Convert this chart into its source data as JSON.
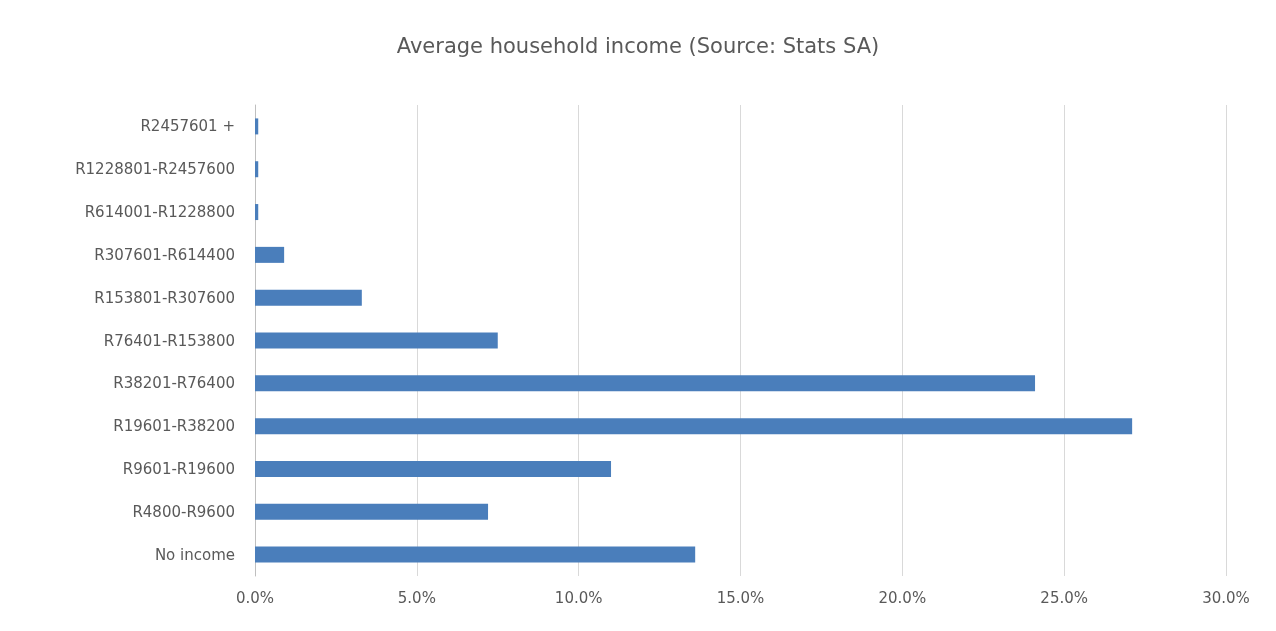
{
  "chart_data": {
    "type": "bar",
    "orientation": "horizontal",
    "title": "Average household income (Source: Stats SA)",
    "categories": [
      "R2457601 +",
      "R1228801-R2457600",
      "R614001-R1228800",
      "R307601-R614400",
      "R153801-R307600",
      "R76401-R153800",
      "R38201-R76400",
      "R19601-R38200",
      "R9601-R19600",
      "R4800-R9600",
      "No income"
    ],
    "values": [
      0.1,
      0.1,
      0.1,
      0.9,
      3.3,
      7.5,
      24.1,
      27.1,
      11.0,
      7.2,
      13.6
    ],
    "color": "#4a7ebb",
    "xlim": [
      0,
      30
    ],
    "xticks": [
      {
        "value": 0,
        "label": "0.0%"
      },
      {
        "value": 5,
        "label": "5.0%"
      },
      {
        "value": 10,
        "label": "10.0%"
      },
      {
        "value": 15,
        "label": "15.0%"
      },
      {
        "value": 20,
        "label": "20.0%"
      },
      {
        "value": 25,
        "label": "25.0%"
      },
      {
        "value": 30,
        "label": "30.0%"
      }
    ],
    "grid": "x"
  }
}
